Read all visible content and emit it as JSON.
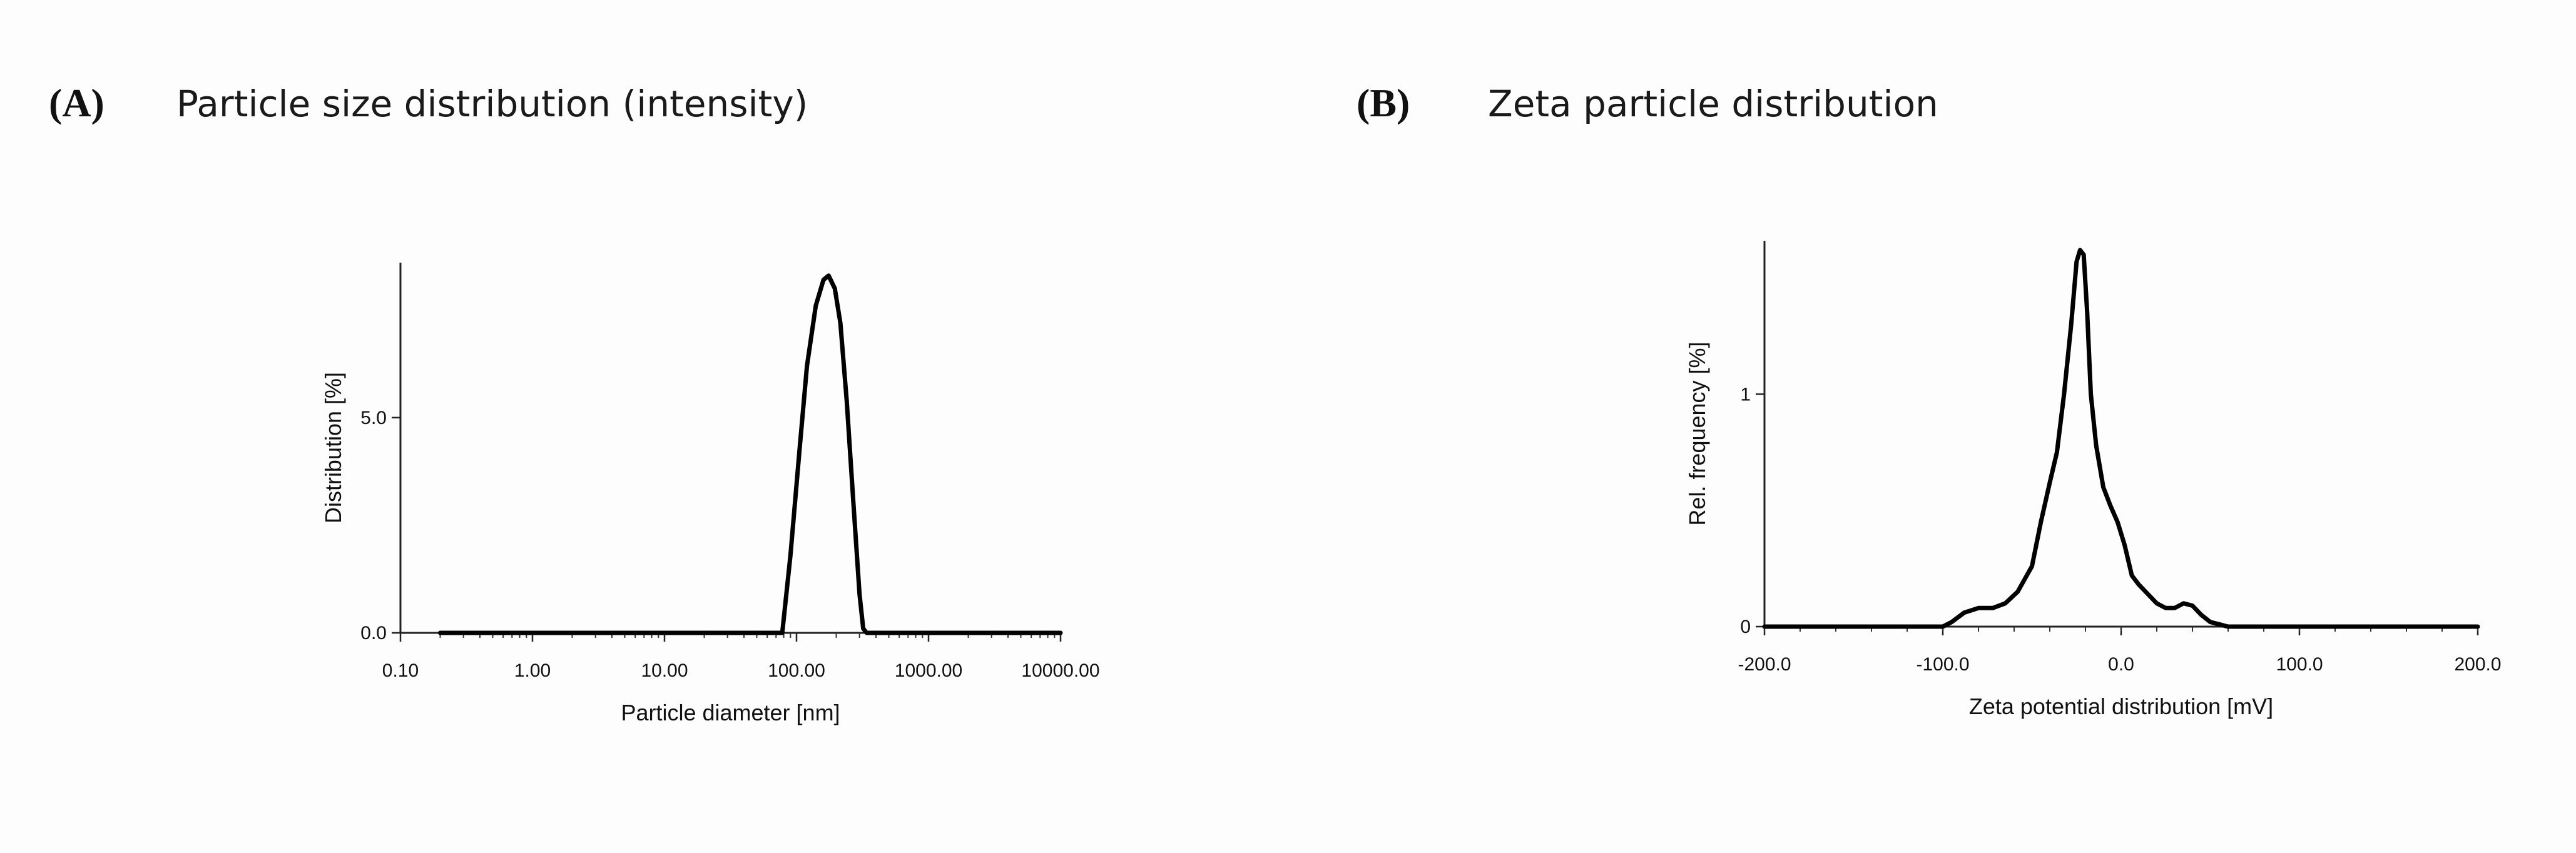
{
  "panels": [
    {
      "letter": "(A)",
      "title": "Particle size distribution (intensity)"
    },
    {
      "letter": "(B)",
      "title": "Zeta particle distribution"
    }
  ],
  "chart_data": [
    {
      "type": "line",
      "title": "Particle size distribution (intensity)",
      "xlabel": "Particle diameter [nm]",
      "ylabel": "Distribution [%]",
      "x_scale": "log",
      "xlim": [
        0.1,
        10000
      ],
      "ylim": [
        0,
        8.6
      ],
      "x_tick_values": [
        0.1,
        1,
        10,
        100,
        1000,
        10000
      ],
      "x_tick_labels": [
        "0.10",
        "1.00",
        "10.00",
        "100.00",
        "1000.00",
        "10000.00"
      ],
      "y_tick_values": [
        0,
        5
      ],
      "y_tick_labels": [
        "0.0",
        "5.0"
      ],
      "grid": false,
      "series": [
        {
          "x": [
            0.2,
            1,
            10,
            50,
            78,
            90,
            105,
            120,
            140,
            160,
            175,
            195,
            215,
            240,
            270,
            300,
            320,
            340,
            1000,
            10000
          ],
          "y": [
            0,
            0,
            0,
            0,
            0,
            1.8,
            4.2,
            6.2,
            7.6,
            8.2,
            8.3,
            8.0,
            7.2,
            5.4,
            3.0,
            0.9,
            0.1,
            0,
            0,
            0
          ]
        }
      ]
    },
    {
      "type": "line",
      "title": "Zeta particle distribution",
      "xlabel": "Zeta potential distribution [mV]",
      "ylabel": "Rel. frequency [%]",
      "xlim": [
        -200,
        200
      ],
      "ylim": [
        0,
        1.66
      ],
      "x_tick_values": [
        -200,
        -100,
        0,
        100,
        200
      ],
      "x_tick_labels": [
        "-200.0",
        "-100.0",
        "0.0",
        "100.0",
        "200.0"
      ],
      "y_tick_values": [
        0,
        1
      ],
      "y_tick_labels": [
        "0",
        "1"
      ],
      "grid": false,
      "series": [
        {
          "x": [
            -200,
            -100,
            -95,
            -88,
            -80,
            -72,
            -65,
            -58,
            -50,
            -45,
            -40,
            -36,
            -32,
            -28,
            -25,
            -23,
            -21,
            -19,
            -17,
            -14,
            -10,
            -6,
            -2,
            2,
            6,
            10,
            15,
            20,
            25,
            30,
            35,
            40,
            45,
            50,
            55,
            60,
            200
          ],
          "y": [
            0,
            0,
            0.02,
            0.06,
            0.08,
            0.08,
            0.1,
            0.15,
            0.26,
            0.45,
            0.62,
            0.75,
            1.0,
            1.3,
            1.57,
            1.62,
            1.6,
            1.35,
            1.0,
            0.78,
            0.6,
            0.52,
            0.45,
            0.35,
            0.22,
            0.18,
            0.14,
            0.1,
            0.08,
            0.08,
            0.1,
            0.09,
            0.05,
            0.02,
            0.01,
            0,
            0
          ]
        }
      ]
    }
  ]
}
